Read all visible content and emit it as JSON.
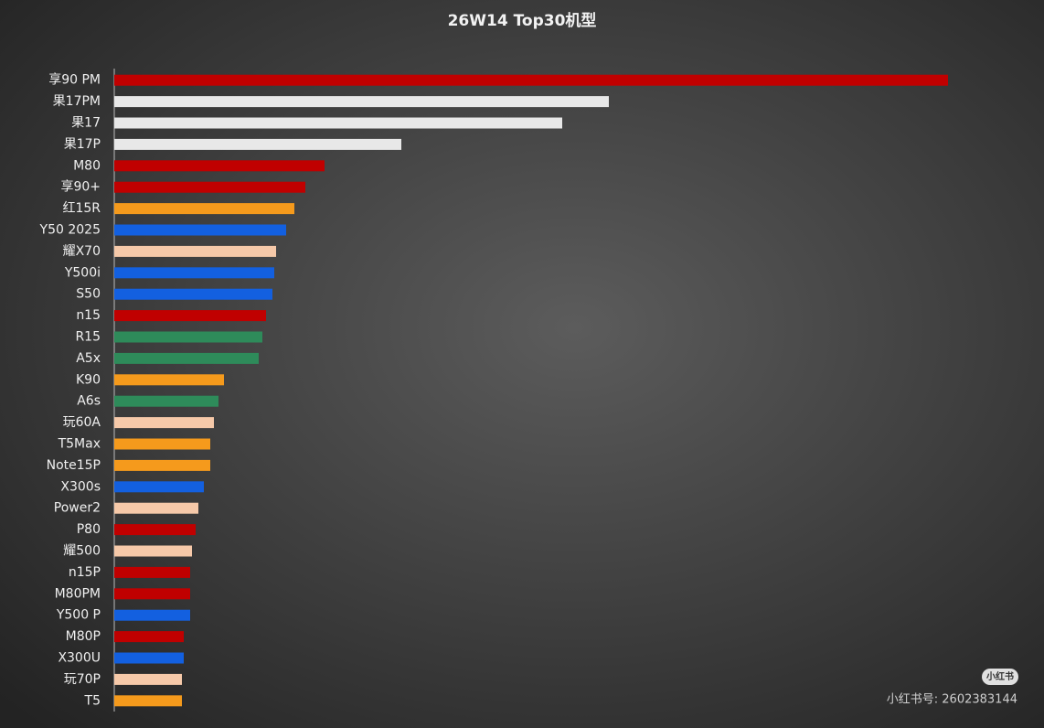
{
  "chart_data": {
    "type": "bar",
    "orientation": "horizontal",
    "title": "26W14 Top30机型",
    "categories": [
      "享90 PM",
      "果17PM",
      "果17",
      "果17P",
      "M80",
      "享90+",
      "红15R",
      "Y50 2025",
      "耀X70",
      "Y500i",
      "S50",
      "n15",
      "R15",
      "A5x",
      "K90",
      "A6s",
      "玩60A",
      "T5Max",
      "Note15P",
      "X300s",
      "Power2",
      "P80",
      "耀500",
      "n15P",
      "M80PM",
      "Y500 P",
      "M80P",
      "X300U",
      "玩70P",
      "T5"
    ],
    "values": [
      912,
      541,
      490,
      314,
      230,
      209,
      197,
      188,
      177,
      175,
      173,
      166,
      162,
      158,
      120,
      114,
      109,
      105,
      105,
      98,
      92,
      89,
      85,
      83,
      83,
      83,
      76,
      76,
      74,
      74
    ],
    "colors": [
      "#c00000",
      "#e8e8e8",
      "#e8e8e8",
      "#e8e8e8",
      "#c00000",
      "#c00000",
      "#f59a1c",
      "#1360e0",
      "#f6c9a9",
      "#1360e0",
      "#1360e0",
      "#c00000",
      "#2e8b5a",
      "#2e8b5a",
      "#f59a1c",
      "#2e8b5a",
      "#f6c9a9",
      "#f59a1c",
      "#f59a1c",
      "#1360e0",
      "#f6c9a9",
      "#c00000",
      "#f6c9a9",
      "#c00000",
      "#c00000",
      "#1360e0",
      "#c00000",
      "#1360e0",
      "#f6c9a9",
      "#f59a1c"
    ],
    "xlim": [
      0,
      1000
    ],
    "annotations": [
      "小红书",
      "小红书号: 2602383144"
    ]
  }
}
